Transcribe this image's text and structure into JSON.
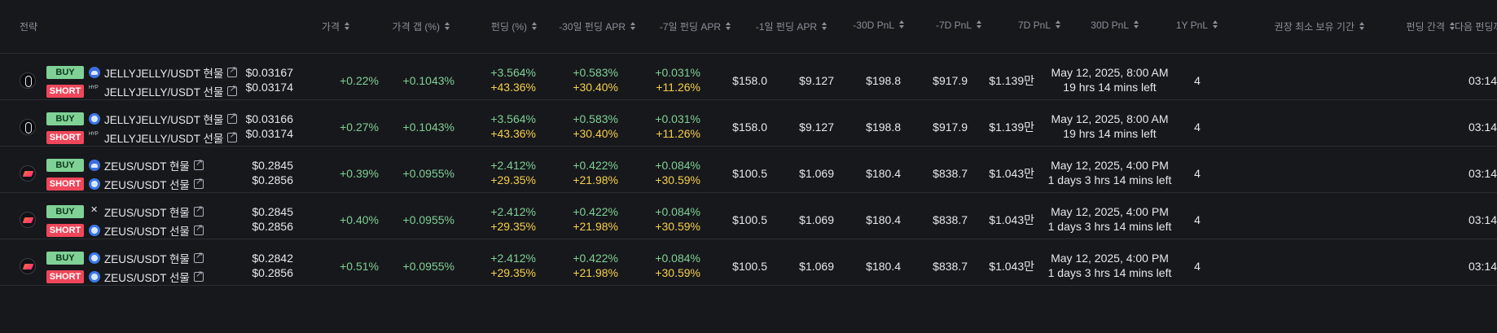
{
  "headers": {
    "strategy": "전략",
    "price": "가격",
    "price_gap": "가격 갭 (%)",
    "funding": "펀딩 (%)",
    "apr30": "-30일 펀딩 APR",
    "apr7": "-7일 펀딩 APR",
    "apr1": "-1일 펀딩 APR",
    "pnl_m30": "-30D PnL",
    "pnl_m7": "-7D PnL",
    "pnl_7": "7D PnL",
    "pnl_30": "30D PnL",
    "pnl_1y": "1Y PnL",
    "min_hold": "권장 최소 보유 기간",
    "funding_interval": "펀딩 간격",
    "next_funding": "다음 펀딩까"
  },
  "rows": [
    {
      "logo": "jelly-logo",
      "buy_label": "BUY",
      "buy_exchange": "cloud-exchange-icon",
      "buy_pair": "JELLYJELLY/USDT 현물",
      "short_label": "SHORT",
      "short_exchange": "hyperliquid-exchange-icon",
      "short_pair": "JELLYJELLY/USDT 선물",
      "price_buy": "$0.03167",
      "price_short": "$0.03174",
      "gap": "+0.22%",
      "funding": "+0.1043%",
      "apr30_a": "+3.564%",
      "apr30_b": "+43.36%",
      "apr7_a": "+0.583%",
      "apr7_b": "+30.40%",
      "apr1_a": "+0.031%",
      "apr1_b": "+11.26%",
      "pnl_m30": "$158.0",
      "pnl_m7": "$9.127",
      "pnl_7": "$198.8",
      "pnl_30": "$917.9",
      "pnl_1y": "$1.139만",
      "date": "May 12, 2025, 8:00 AM",
      "left": "19 hrs 14 mins left",
      "interval": "4",
      "next": "03:14"
    },
    {
      "logo": "jelly-logo",
      "buy_label": "BUY",
      "buy_exchange": "ring-exchange-icon",
      "buy_pair": "JELLYJELLY/USDT 현물",
      "short_label": "SHORT",
      "short_exchange": "hyperliquid-exchange-icon",
      "short_pair": "JELLYJELLY/USDT 선물",
      "price_buy": "$0.03166",
      "price_short": "$0.03174",
      "gap": "+0.27%",
      "funding": "+0.1043%",
      "apr30_a": "+3.564%",
      "apr30_b": "+43.36%",
      "apr7_a": "+0.583%",
      "apr7_b": "+30.40%",
      "apr1_a": "+0.031%",
      "apr1_b": "+11.26%",
      "pnl_m30": "$158.0",
      "pnl_m7": "$9.127",
      "pnl_7": "$198.8",
      "pnl_30": "$917.9",
      "pnl_1y": "$1.139만",
      "date": "May 12, 2025, 8:00 AM",
      "left": "19 hrs 14 mins left",
      "interval": "4",
      "next": "03:14"
    },
    {
      "logo": "zeus-logo",
      "buy_label": "BUY",
      "buy_exchange": "cloud-exchange-icon",
      "buy_pair": "ZEUS/USDT 현물",
      "short_label": "SHORT",
      "short_exchange": "ring-exchange-icon",
      "short_pair": "ZEUS/USDT 선물",
      "price_buy": "$0.2845",
      "price_short": "$0.2856",
      "gap": "+0.39%",
      "funding": "+0.0955%",
      "apr30_a": "+2.412%",
      "apr30_b": "+29.35%",
      "apr7_a": "+0.422%",
      "apr7_b": "+21.98%",
      "apr1_a": "+0.084%",
      "apr1_b": "+30.59%",
      "pnl_m30": "$100.5",
      "pnl_m7": "$1.069",
      "pnl_7": "$180.4",
      "pnl_30": "$838.7",
      "pnl_1y": "$1.043만",
      "date": "May 12, 2025, 4:00 PM",
      "left": "1 days 3 hrs 14 mins left",
      "interval": "4",
      "next": "03:14"
    },
    {
      "logo": "zeus-logo",
      "buy_label": "BUY",
      "buy_exchange": "okx-exchange-icon",
      "buy_pair": "ZEUS/USDT 현물",
      "short_label": "SHORT",
      "short_exchange": "ring-exchange-icon",
      "short_pair": "ZEUS/USDT 선물",
      "price_buy": "$0.2845",
      "price_short": "$0.2856",
      "gap": "+0.40%",
      "funding": "+0.0955%",
      "apr30_a": "+2.412%",
      "apr30_b": "+29.35%",
      "apr7_a": "+0.422%",
      "apr7_b": "+21.98%",
      "apr1_a": "+0.084%",
      "apr1_b": "+30.59%",
      "pnl_m30": "$100.5",
      "pnl_m7": "$1.069",
      "pnl_7": "$180.4",
      "pnl_30": "$838.7",
      "pnl_1y": "$1.043만",
      "date": "May 12, 2025, 4:00 PM",
      "left": "1 days 3 hrs 14 mins left",
      "interval": "4",
      "next": "03:14"
    },
    {
      "logo": "zeus-logo",
      "buy_label": "BUY",
      "buy_exchange": "ring-exchange-icon",
      "buy_pair": "ZEUS/USDT 현물",
      "short_label": "SHORT",
      "short_exchange": "ring-exchange-icon",
      "short_pair": "ZEUS/USDT 선물",
      "price_buy": "$0.2842",
      "price_short": "$0.2856",
      "gap": "+0.51%",
      "funding": "+0.0955%",
      "apr30_a": "+2.412%",
      "apr30_b": "+29.35%",
      "apr7_a": "+0.422%",
      "apr7_b": "+21.98%",
      "apr1_a": "+0.084%",
      "apr1_b": "+30.59%",
      "pnl_m30": "$100.5",
      "pnl_m7": "$1.069",
      "pnl_7": "$180.4",
      "pnl_30": "$838.7",
      "pnl_1y": "$1.043만",
      "date": "May 12, 2025, 4:00 PM",
      "left": "1 days 3 hrs 14 mins left",
      "interval": "4",
      "next": "03:14"
    }
  ]
}
